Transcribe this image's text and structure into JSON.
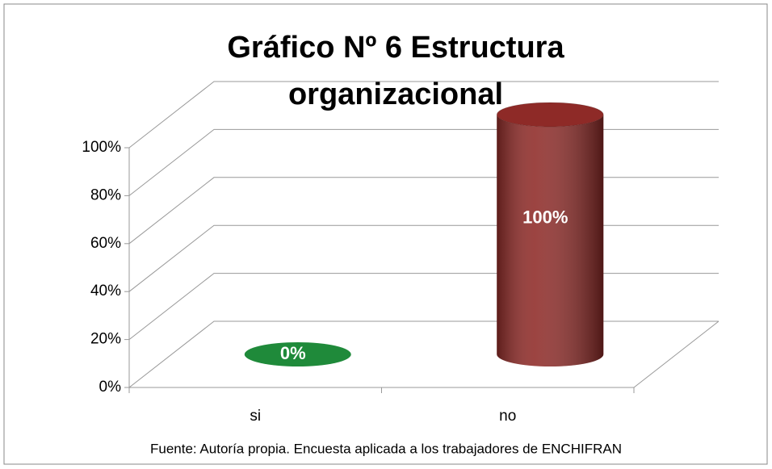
{
  "chart_data": {
    "type": "bar3d",
    "title": "Gráfico Nº 6 Estructura organizacional",
    "categories": [
      "si",
      "no"
    ],
    "series": [
      {
        "values": [
          0,
          100
        ],
        "value_labels": [
          "0%",
          "100%"
        ],
        "colors": [
          "#1f8a3a",
          "#8e2a27"
        ]
      }
    ],
    "ylim": [
      0,
      100
    ],
    "yticks": [
      {
        "value": 0,
        "label": "0%"
      },
      {
        "value": 20,
        "label": "20%"
      },
      {
        "value": 40,
        "label": "40%"
      },
      {
        "value": 60,
        "label": "60%"
      },
      {
        "value": 80,
        "label": "80%"
      },
      {
        "value": 100,
        "label": "100%"
      }
    ],
    "grid": true,
    "source": "Fuente: Autoría propia. Encuesta aplicada a los trabajadores de ENCHIFRAN"
  }
}
